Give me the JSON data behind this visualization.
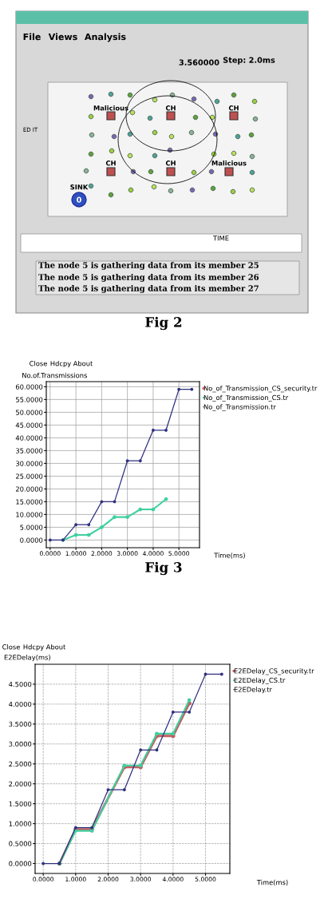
{
  "chart_data": [
    {
      "type": "other",
      "annotations": [
        "File",
        "Views",
        "Analysis",
        "3.560000",
        "Step: 2.0ms",
        "ED IT",
        "Malicious",
        "CH",
        "CH",
        "CH",
        "CH",
        "Malicious",
        "SINK",
        "0",
        "TIME",
        "The node 5 is gathering data from its member 25",
        "The node 5 is gathering data from its member 26",
        "The node 5 is gathering data from its member 27",
        "Fig 2"
      ]
    },
    {
      "type": "line",
      "ylabel": "No.of.Transmissions",
      "xlabel": "Time(ms)",
      "annotations": [
        "Close",
        "Hdcpy",
        "About",
        "Fig 3"
      ],
      "xlim": [
        -0.15,
        5.8
      ],
      "ylim": [
        -3,
        62
      ],
      "xticks": [
        {
          "value": 0,
          "label": "0.0000"
        },
        {
          "value": 1,
          "label": "1.0000"
        },
        {
          "value": 2,
          "label": "2.0000"
        },
        {
          "value": 3,
          "label": "3.0000"
        },
        {
          "value": 4,
          "label": "4.0000"
        },
        {
          "value": 5,
          "label": "5.0000"
        }
      ],
      "yticks": [
        {
          "value": 0,
          "label": "0.0000"
        },
        {
          "value": 5,
          "label": "5.0000"
        },
        {
          "value": 10,
          "label": "10.0000"
        },
        {
          "value": 15,
          "label": "15.0000"
        },
        {
          "value": 20,
          "label": "20.0000"
        },
        {
          "value": 25,
          "label": "25.0000"
        },
        {
          "value": 30,
          "label": "30.0000"
        },
        {
          "value": 35,
          "label": "35.0000"
        },
        {
          "value": 40,
          "label": "40.0000"
        },
        {
          "value": 45,
          "label": "45.0000"
        },
        {
          "value": 50,
          "label": "50.0000"
        },
        {
          "value": 55,
          "label": "55.0000"
        },
        {
          "value": 60,
          "label": "60.0000"
        }
      ],
      "grid": true,
      "legend": "top right",
      "marker": "circle",
      "line_style": "solid",
      "series": [
        {
          "name": "No_of_Transmission_CS_security.tr",
          "color": "#e06060"
        },
        {
          "name": "No_of_Transmission_CS.tr",
          "color": "#40d0a0",
          "x": [
            0.5,
            1,
            1.5,
            2,
            2.5,
            3,
            3.5,
            4,
            4.5
          ],
          "values": [
            0,
            2,
            2,
            5,
            9,
            9,
            12,
            12,
            16
          ]
        },
        {
          "name": "No_of_Transmission.tr",
          "color": "#303080",
          "x": [
            0,
            0.5,
            1,
            1.5,
            2,
            2.5,
            3,
            3.5,
            4,
            4.5,
            5,
            5.5
          ],
          "values": [
            0,
            0,
            6,
            6,
            15,
            15,
            31,
            31,
            43,
            43,
            59,
            59
          ]
        }
      ]
    },
    {
      "type": "line",
      "ylabel": "E2EDelay(ms)",
      "xlabel": "Time(ms)",
      "annotations": [
        "Close",
        "Hdcpy",
        "About"
      ],
      "xlim": [
        -0.25,
        5.75
      ],
      "ylim": [
        -0.25,
        5.0
      ],
      "xticks": [
        {
          "value": 0,
          "label": "0.0000"
        },
        {
          "value": 1,
          "label": "1.0000"
        },
        {
          "value": 2,
          "label": "2.0000"
        },
        {
          "value": 3,
          "label": "3.0000"
        },
        {
          "value": 4,
          "label": "4.0000"
        },
        {
          "value": 5,
          "label": "5.0000"
        }
      ],
      "yticks": [
        {
          "value": 0,
          "label": "0.0000"
        },
        {
          "value": 0.5,
          "label": "0.5000"
        },
        {
          "value": 1,
          "label": "1.0000"
        },
        {
          "value": 1.5,
          "label": "1.5000"
        },
        {
          "value": 2,
          "label": "2.0000"
        },
        {
          "value": 2.5,
          "label": "2.5000"
        },
        {
          "value": 3,
          "label": "3.0000"
        },
        {
          "value": 3.5,
          "label": "3.5000"
        },
        {
          "value": 4,
          "label": "4.0000"
        },
        {
          "value": 4.5,
          "label": "4.5000"
        }
      ],
      "grid": true,
      "legend": "top right",
      "marker": "circle",
      "line_style": "solid",
      "series": [
        {
          "name": "E2EDelay_CS_security.tr",
          "color": "#c06060",
          "x": [
            0.5,
            1,
            1.5,
            2.5,
            3,
            3.5,
            4,
            4.5
          ],
          "values": [
            0,
            0.86,
            0.86,
            2.42,
            2.42,
            3.2,
            3.2,
            4.02
          ]
        },
        {
          "name": "E2EDelay_CS.tr",
          "color": "#40d0a0",
          "x": [
            0.5,
            1,
            1.5,
            2.5,
            3,
            3.5,
            4,
            4.5
          ],
          "values": [
            0,
            0.82,
            0.82,
            2.46,
            2.46,
            3.26,
            3.26,
            4.1
          ]
        },
        {
          "name": "E2EDelay.tr",
          "color": "#303080",
          "x": [
            0,
            0.5,
            1,
            1.5,
            2,
            2.5,
            3,
            3.5,
            4,
            4.5,
            5,
            5.5
          ],
          "values": [
            0,
            0,
            0.9,
            0.9,
            1.85,
            1.85,
            2.85,
            2.85,
            3.8,
            3.8,
            4.75,
            4.75
          ]
        }
      ]
    }
  ]
}
